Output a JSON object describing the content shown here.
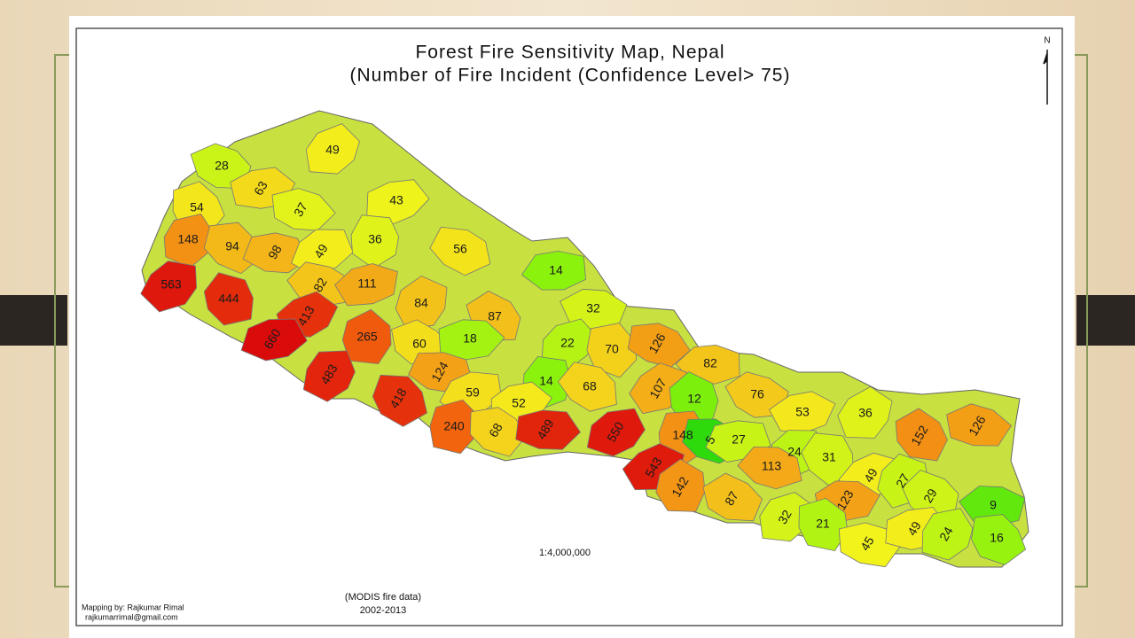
{
  "map": {
    "title": "Forest Fire Sensitivity Map, Nepal",
    "subtitle": "(Number of Fire Incident (Confidence Level> 75)",
    "north": "N",
    "scale": "1:4,000,000",
    "source": "(MODIS fire data)",
    "period": "2002-2013",
    "credit": "Mapping by: Rajkumar Rimal",
    "email": "rajkumarrimal@gmail.com",
    "districts": [
      28,
      63,
      49,
      54,
      37,
      43,
      148,
      94,
      98,
      49,
      36,
      56,
      14,
      563,
      444,
      82,
      111,
      84,
      87,
      32,
      413,
      265,
      60,
      18,
      22,
      70,
      126,
      660,
      483,
      418,
      124,
      59,
      14,
      68,
      82,
      107,
      12,
      76,
      53,
      36,
      152,
      126,
      52,
      240,
      68,
      489,
      550,
      148,
      5,
      27,
      24,
      31,
      113,
      49,
      27,
      29,
      9,
      543,
      142,
      87,
      123,
      32,
      21,
      45,
      49,
      24,
      16
    ]
  }
}
